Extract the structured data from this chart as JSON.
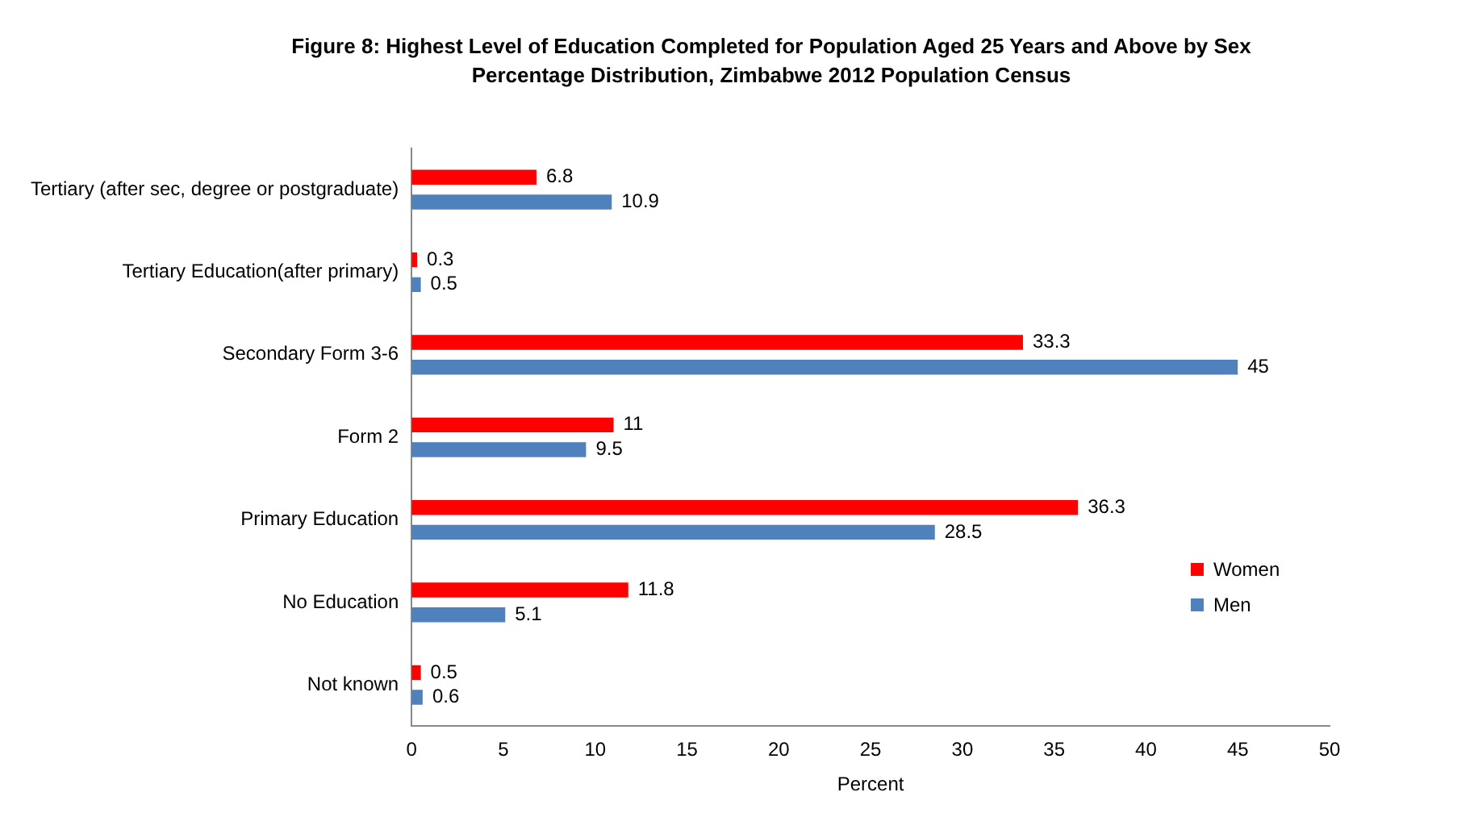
{
  "chart_data": {
    "type": "bar",
    "orientation": "horizontal",
    "title": "Figure 8: Highest Level of Education Completed for Population Aged 25 Years and Above by Sex Percentage Distribution,  Zimbabwe 2012 Population Census",
    "xlabel": "Percent",
    "categories": [
      "Tertiary (after sec, degree or postgraduate)",
      "Tertiary Education(after primary)",
      "Secondary Form 3-6",
      "Form 2",
      "Primary Education",
      "No Education",
      "Not known"
    ],
    "series": [
      {
        "name": "Women",
        "color": "#ff0000",
        "values": [
          6.8,
          0.3,
          33.3,
          11,
          36.3,
          11.8,
          0.5
        ]
      },
      {
        "name": "Men",
        "color": "#4f81bd",
        "values": [
          10.9,
          0.5,
          45,
          9.5,
          28.5,
          5.1,
          0.6
        ]
      }
    ],
    "xlim": [
      0,
      50
    ],
    "xticks": [
      0,
      5,
      10,
      15,
      20,
      25,
      30,
      35,
      40,
      45,
      50
    ],
    "grid": false,
    "legend": "right",
    "data_labels": true
  }
}
